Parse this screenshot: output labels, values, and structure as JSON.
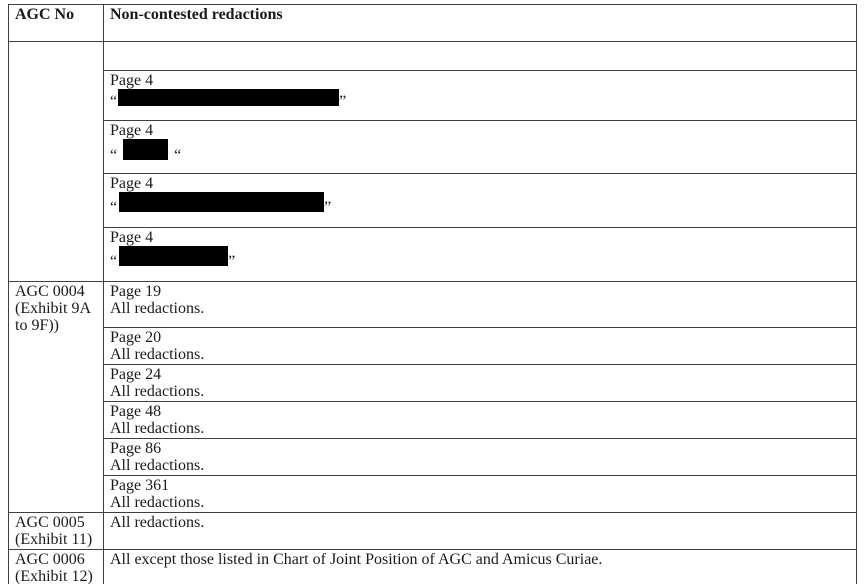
{
  "colors": {
    "background": "#ffffff",
    "text": "#1a1a1a",
    "table_border": "#3f3f3f",
    "redaction_bar": "#000000"
  },
  "header": {
    "col_agc": "AGC No",
    "col_redactions": "Non-contested redactions"
  },
  "group_unlabeled": {
    "agc_label": "",
    "empty_row": "",
    "entries": [
      {
        "page": "Page 4",
        "open_quote": "“",
        "close_quote": "”",
        "bar_css": "width:221px;height:17px"
      },
      {
        "page": "Page 4",
        "open_quote": "“",
        "close_quote": "“",
        "bar_css": "width:45px;height:21px"
      },
      {
        "page": "Page 4",
        "open_quote": "“",
        "close_quote": "”",
        "bar_css": "width:205px;height:20px"
      },
      {
        "page": "Page 4",
        "open_quote": "“",
        "close_quote": "”",
        "bar_css": "width:109px;height:20px"
      }
    ]
  },
  "agc0004": {
    "label_lines": [
      "AGC 0004",
      "(Exhibit 9A",
      "to 9F))"
    ],
    "pages": [
      {
        "page": "Page 19",
        "note": "All redactions."
      },
      {
        "page": "Page 20",
        "note": "All redactions."
      },
      {
        "page": "Page 24",
        "note": "All redactions."
      },
      {
        "page": "Page 48",
        "note": "All redactions."
      },
      {
        "page": "Page 86",
        "note": "All redactions."
      },
      {
        "page": "Page 361",
        "note": "All redactions."
      }
    ]
  },
  "agc0005": {
    "label_lines": [
      "AGC 0005",
      "(Exhibit 11)"
    ],
    "note": "All redactions."
  },
  "agc0006": {
    "label_lines": [
      "AGC 0006",
      "(Exhibit 12)"
    ],
    "note": "All except those listed in Chart of Joint Position of AGC and Amicus Curiae."
  }
}
